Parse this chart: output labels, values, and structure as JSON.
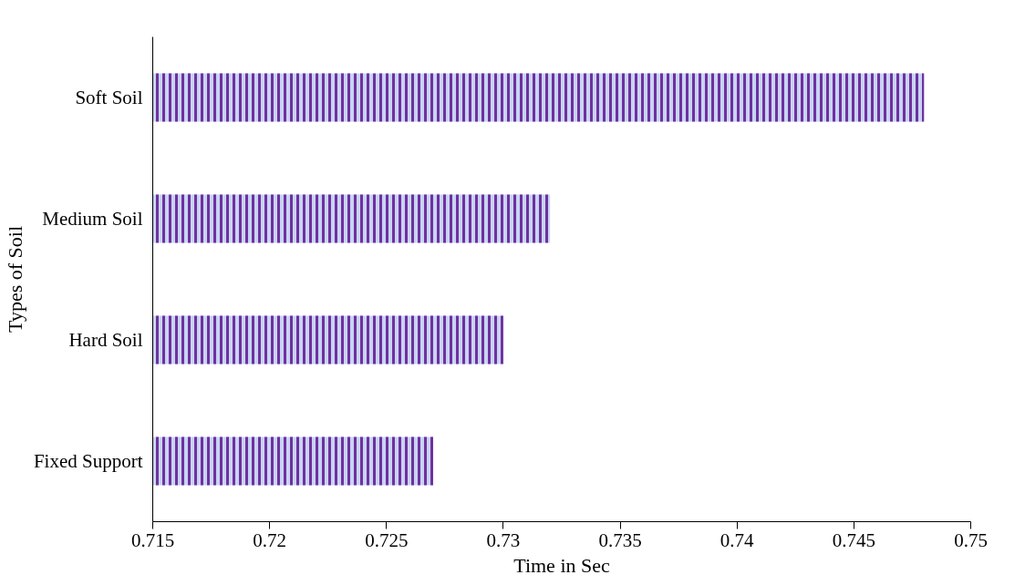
{
  "chart_data": {
    "type": "bar",
    "orientation": "horizontal",
    "xlabel": "Time in Sec",
    "ylabel": "Types of Soil",
    "categories": [
      "Soft Soil",
      "Medium Soil",
      "Hard Soil",
      "Fixed Support"
    ],
    "values": [
      0.748,
      0.732,
      0.73,
      0.727
    ],
    "color": "#7030a0",
    "xlim": [
      0.715,
      0.75
    ],
    "xticks": [
      0.715,
      0.72,
      0.725,
      0.73,
      0.735,
      0.74,
      0.745,
      0.75
    ],
    "grid": false
  }
}
